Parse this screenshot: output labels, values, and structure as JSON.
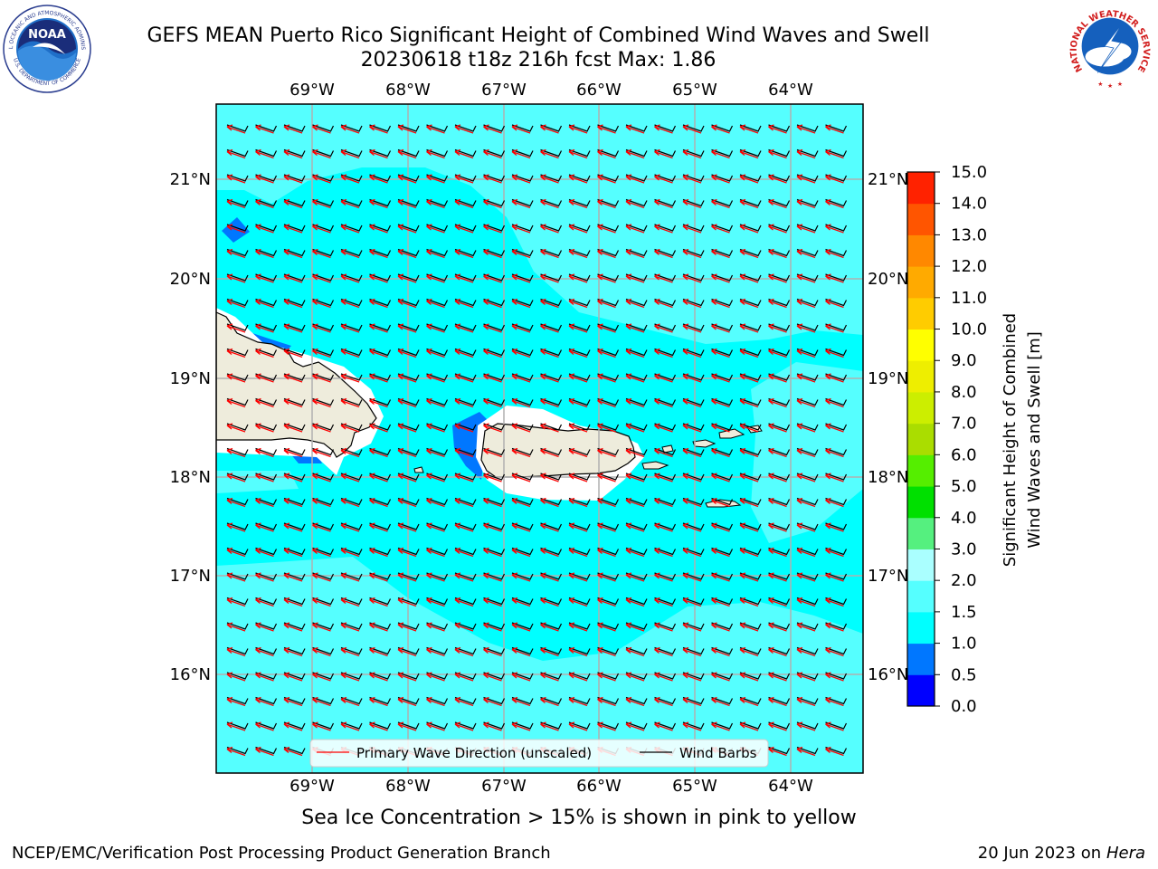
{
  "header": {
    "title_line1": "GEFS MEAN Puerto Rico Significant Height of Combined Wind Waves and Swell",
    "title_line2": "20230618 t18z 216h fcst   Max: 1.86"
  },
  "logos": {
    "noaa_text": "NOAA",
    "noaa_ring_top": "NATIONAL OCEANIC AND ATMOSPHERIC ADMINISTRATION",
    "noaa_ring_bottom": "U.S. DEPARTMENT OF COMMERCE",
    "nws_ring": "NATIONAL WEATHER SERVICE"
  },
  "map": {
    "lon_labels": [
      "69°W",
      "68°W",
      "67°W",
      "66°W",
      "65°W",
      "64°W"
    ],
    "lat_labels": [
      "21°N",
      "20°N",
      "19°N",
      "18°N",
      "17°N",
      "16°N"
    ],
    "legend": {
      "wave_label": "Primary Wave Direction (unscaled)",
      "barb_label": "Wind Barbs"
    },
    "colors": {
      "sea": "#00ffff",
      "light_sea": "#55ffff",
      "land": "#eeecdc",
      "arrow": "#ff0000",
      "barb": "#000000"
    }
  },
  "colorbar": {
    "label_line1": "Significant Height of Combined",
    "label_line2": "Wind Waves and Swell [m]",
    "ticks": [
      "0.0",
      "0.5",
      "1.0",
      "1.5",
      "2.0",
      "3.0",
      "4.0",
      "5.0",
      "6.0",
      "7.0",
      "8.0",
      "9.0",
      "10.0",
      "11.0",
      "12.0",
      "13.0",
      "14.0",
      "15.0"
    ],
    "colors": [
      "#0000ff",
      "#0077ff",
      "#00ffff",
      "#55ffff",
      "#aaffff",
      "#55f07f",
      "#00e000",
      "#55ee00",
      "#aadd00",
      "#ccee00",
      "#eeee00",
      "#ffff00",
      "#ffcc00",
      "#ffaa00",
      "#ff8800",
      "#ff5500",
      "#ff2200"
    ]
  },
  "footer": {
    "note": "Sea Ice Concentration > 15% is shown in pink to yellow",
    "credit": "NCEP/EMC/Verification Post Processing Product Generation Branch",
    "date": "20 Jun 2023 on",
    "machine": "Hera"
  }
}
